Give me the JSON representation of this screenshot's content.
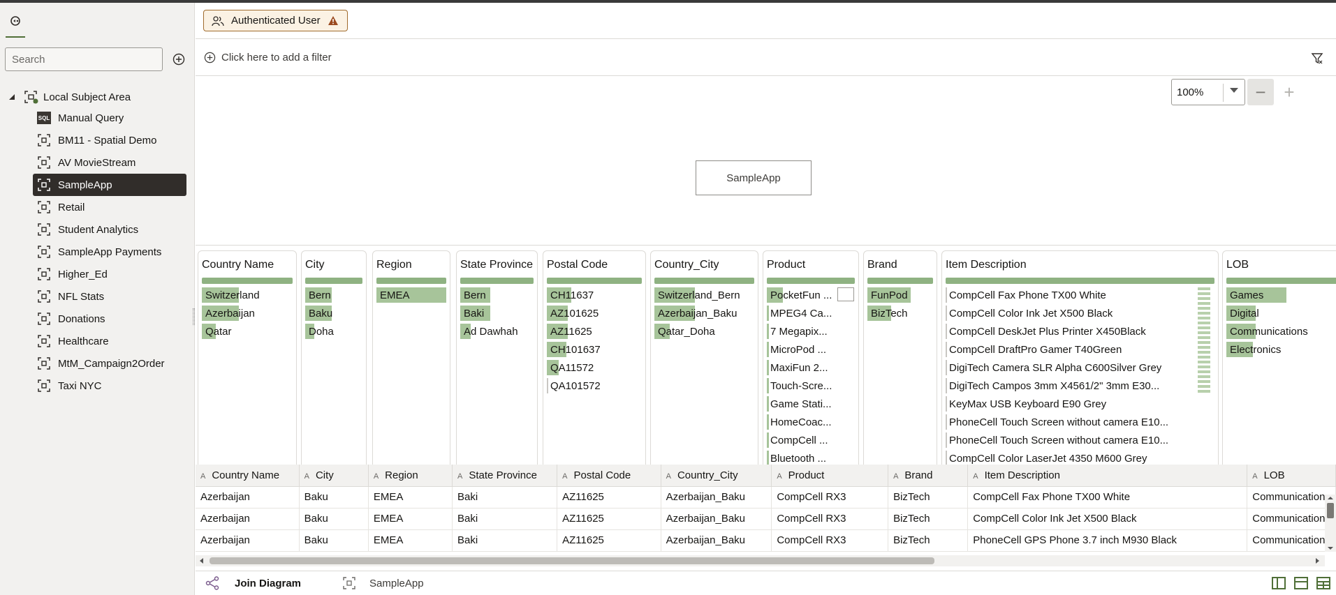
{
  "app": {
    "accent_color": "#4f6f37",
    "selection_color": "#312d2a",
    "bar_color": "#a7c49a"
  },
  "sidebar": {
    "search_placeholder": "Search",
    "root_label": "Local Subject Area",
    "items": [
      {
        "label": "Manual Query",
        "icon": "sql-icon"
      },
      {
        "label": "BM11 - Spatial Demo",
        "icon": "subject-area-icon"
      },
      {
        "label": "AV MovieStream",
        "icon": "subject-area-icon"
      },
      {
        "label": "SampleApp",
        "icon": "subject-area-icon",
        "selected": true
      },
      {
        "label": "Retail",
        "icon": "subject-area-icon"
      },
      {
        "label": "Student Analytics",
        "icon": "subject-area-icon"
      },
      {
        "label": "SampleApp Payments",
        "icon": "subject-area-icon"
      },
      {
        "label": "Higher_Ed",
        "icon": "subject-area-icon"
      },
      {
        "label": "NFL Stats",
        "icon": "subject-area-icon"
      },
      {
        "label": "Donations",
        "icon": "subject-area-icon"
      },
      {
        "label": "Healthcare",
        "icon": "subject-area-icon"
      },
      {
        "label": "MtM_Campaign2Order",
        "icon": "subject-area-icon"
      },
      {
        "label": "Taxi NYC",
        "icon": "subject-area-icon"
      }
    ]
  },
  "header": {
    "auth_label": "Authenticated User",
    "add_filter_label": "Click here to add a filter"
  },
  "canvas": {
    "zoom_value": "100%",
    "zoom_out": "−",
    "zoom_in": "+",
    "entity_label": "SampleApp"
  },
  "profile": [
    {
      "title": "Country Name",
      "values": [
        {
          "t": "Switzerland",
          "f": 0.4
        },
        {
          "t": "Azerbaijan",
          "f": 0.4
        },
        {
          "t": "Qatar",
          "f": 0.15
        }
      ]
    },
    {
      "title": "City",
      "values": [
        {
          "t": "Bern",
          "f": 0.45
        },
        {
          "t": "Baku",
          "f": 0.45
        },
        {
          "t": "Doha",
          "f": 0.15
        }
      ]
    },
    {
      "title": "Region",
      "values": [
        {
          "t": "EMEA",
          "f": 1.0
        }
      ]
    },
    {
      "title": "State Province",
      "values": [
        {
          "t": "Bern",
          "f": 0.4
        },
        {
          "t": "Baki",
          "f": 0.4
        },
        {
          "t": "Ad Dawhah",
          "f": 0.14
        }
      ]
    },
    {
      "title": "Postal Code",
      "values": [
        {
          "t": "CH11637",
          "f": 0.25
        },
        {
          "t": "AZ101625",
          "f": 0.22
        },
        {
          "t": "AZ11625",
          "f": 0.22
        },
        {
          "t": "CH101637",
          "f": 0.2
        },
        {
          "t": "QA11572",
          "f": 0.12
        },
        {
          "t": "QA101572",
          "f": 0.0
        }
      ]
    },
    {
      "title": "Country_City",
      "values": [
        {
          "t": "Switzerland_Bern",
          "f": 0.4
        },
        {
          "t": "Azerbaijan_Baku",
          "f": 0.4
        },
        {
          "t": "Qatar_Doha",
          "f": 0.15
        }
      ]
    },
    {
      "title": "Product",
      "values": [
        {
          "t": "PocketFun ...",
          "f": 0.18
        },
        {
          "t": "MPEG4 Ca...",
          "f": 0.02
        },
        {
          "t": "7 Megapix...",
          "f": 0.02
        },
        {
          "t": "MicroPod ...",
          "f": 0.02
        },
        {
          "t": "MaxiFun 2...",
          "f": 0.02
        },
        {
          "t": "Touch-Scre...",
          "f": 0.02
        },
        {
          "t": "Game Stati...",
          "f": 0.02
        },
        {
          "t": "HomeCoac...",
          "f": 0.02
        },
        {
          "t": "CompCell ...",
          "f": 0.02
        },
        {
          "t": "Bluetooth ...",
          "f": 0.02
        }
      ]
    },
    {
      "title": "Brand",
      "values": [
        {
          "t": "FunPod",
          "f": 0.65
        },
        {
          "t": "BizTech",
          "f": 0.35
        }
      ]
    },
    {
      "title": "Item Description",
      "values": [
        {
          "t": "CompCell Fax Phone TX00 White",
          "f": 0.0
        },
        {
          "t": "CompCell Color Ink Jet X500 Black",
          "f": 0.0
        },
        {
          "t": "CompCell DeskJet Plus Printer X450Black",
          "f": 0.0
        },
        {
          "t": "CompCell DraftPro Gamer T40Green",
          "f": 0.0
        },
        {
          "t": "DigiTech Camera SLR Alpha C600Silver Grey",
          "f": 0.0
        },
        {
          "t": "DigiTech Campos 3mm X4561/2\" 3mm E30...",
          "f": 0.0
        },
        {
          "t": "KeyMax USB Keyboard E90 Grey",
          "f": 0.0
        },
        {
          "t": "PhoneCell Touch Screen without camera E10...",
          "f": 0.0
        },
        {
          "t": "PhoneCell Touch Screen without camera E10...",
          "f": 0.0
        },
        {
          "t": "CompCell Color LaserJet 4350 M600 Grey",
          "f": 0.0
        }
      ]
    },
    {
      "title": "LOB",
      "values": [
        {
          "t": "Games",
          "f": 0.45
        },
        {
          "t": "Digital",
          "f": 0.22
        },
        {
          "t": "Communications",
          "f": 0.22
        },
        {
          "t": "Electronics",
          "f": 0.2
        }
      ]
    }
  ],
  "table": {
    "columns": [
      "Country Name",
      "City",
      "Region",
      "State Province",
      "Postal Code",
      "Country_City",
      "Product",
      "Brand",
      "Item Description",
      "LOB"
    ],
    "rows": [
      [
        "Azerbaijan",
        "Baku",
        "EMEA",
        "Baki",
        "AZ11625",
        "Azerbaijan_Baku",
        "CompCell RX3",
        "BizTech",
        "CompCell Fax Phone TX00 White",
        "Communications"
      ],
      [
        "Azerbaijan",
        "Baku",
        "EMEA",
        "Baki",
        "AZ11625",
        "Azerbaijan_Baku",
        "CompCell RX3",
        "BizTech",
        "CompCell Color Ink Jet X500 Black",
        "Communications"
      ],
      [
        "Azerbaijan",
        "Baku",
        "EMEA",
        "Baki",
        "AZ11625",
        "Azerbaijan_Baku",
        "CompCell RX3",
        "BizTech",
        "PhoneCell GPS Phone 3.7 inch M930 Black",
        "Communications"
      ]
    ]
  },
  "bottom_tabs": {
    "join_diagram": "Join Diagram",
    "sampleapp": "SampleApp"
  }
}
